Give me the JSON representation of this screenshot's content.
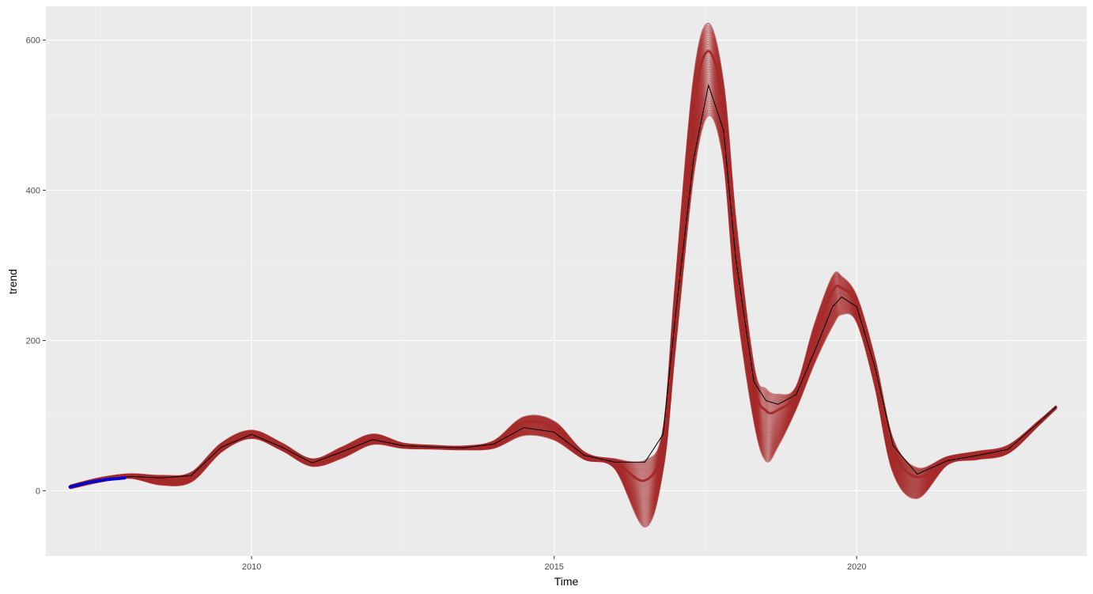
{
  "chart_data": {
    "type": "line",
    "title": "",
    "xlabel": "Time",
    "ylabel": "trend",
    "xlim": [
      2006.6,
      2023.8
    ],
    "ylim": [
      -87,
      645
    ],
    "x_ticks": [
      2010,
      2015,
      2020
    ],
    "x_tick_labels": [
      "2010",
      "2015",
      "2020"
    ],
    "y_ticks": [
      0,
      200,
      400,
      600
    ],
    "y_tick_labels": [
      "0",
      "200",
      "400",
      "600"
    ],
    "grid": true,
    "legend": "none",
    "colors": {
      "panel_background": "#ebebeb",
      "grid_major": "#ffffff",
      "grid_minor": "#f5f5f5",
      "trend_line": "#000000",
      "fitted_band": "#a52a2a",
      "initial_segment": "#0000cd"
    },
    "series": [
      {
        "role": "trend",
        "x": [
          2007.0,
          2007.5,
          2008.0,
          2008.5,
          2009.0,
          2009.5,
          2010.0,
          2010.5,
          2011.0,
          2011.5,
          2012.0,
          2012.5,
          2013.0,
          2013.5,
          2014.0,
          2014.5,
          2015.0,
          2015.5,
          2016.0,
          2016.5,
          2016.8,
          2017.0,
          2017.3,
          2017.55,
          2017.8,
          2018.0,
          2018.3,
          2018.5,
          2018.7,
          2019.0,
          2019.3,
          2019.6,
          2019.75,
          2020.0,
          2020.3,
          2020.6,
          2021.0,
          2021.5,
          2022.0,
          2022.5,
          2023.0,
          2023.3
        ],
        "y": [
          5,
          14,
          19,
          17,
          20,
          58,
          75,
          58,
          37,
          52,
          68,
          60,
          58,
          57,
          62,
          84,
          78,
          47,
          38,
          38,
          75,
          230,
          440,
          540,
          480,
          310,
          145,
          120,
          115,
          128,
          185,
          245,
          258,
          245,
          165,
          60,
          22,
          40,
          47,
          55,
          90,
          112
        ]
      },
      {
        "role": "fitted-upper",
        "x": [
          2007.0,
          2007.5,
          2008.0,
          2008.5,
          2009.0,
          2009.5,
          2010.0,
          2010.5,
          2011.0,
          2011.5,
          2012.0,
          2012.5,
          2013.0,
          2013.5,
          2014.0,
          2014.5,
          2015.0,
          2015.5,
          2016.0,
          2016.5,
          2016.8,
          2017.0,
          2017.3,
          2017.55,
          2017.8,
          2018.0,
          2018.3,
          2018.5,
          2018.7,
          2019.0,
          2019.3,
          2019.6,
          2019.75,
          2020.0,
          2020.3,
          2020.6,
          2021.0,
          2021.5,
          2022.0,
          2022.5,
          2023.0,
          2023.3
        ],
        "y": [
          7,
          17,
          22,
          20,
          24,
          63,
          80,
          63,
          42,
          58,
          75,
          63,
          60,
          59,
          66,
          98,
          92,
          51,
          42,
          40,
          80,
          270,
          545,
          622,
          540,
          360,
          165,
          135,
          128,
          138,
          220,
          285,
          285,
          258,
          175,
          68,
          30,
          45,
          52,
          60,
          92,
          113
        ]
      },
      {
        "role": "fitted-lower",
        "x": [
          2007.0,
          2007.5,
          2008.0,
          2008.5,
          2009.0,
          2009.5,
          2010.0,
          2010.5,
          2011.0,
          2011.5,
          2012.0,
          2012.5,
          2013.0,
          2013.5,
          2014.0,
          2014.5,
          2015.0,
          2015.5,
          2016.0,
          2016.5,
          2016.8,
          2017.0,
          2017.3,
          2017.55,
          2017.8,
          2018.0,
          2018.3,
          2018.5,
          2018.7,
          2019.0,
          2019.3,
          2019.6,
          2019.75,
          2020.0,
          2020.3,
          2020.6,
          2021.0,
          2021.5,
          2022.0,
          2022.5,
          2023.0,
          2023.3
        ],
        "y": [
          3,
          12,
          17,
          8,
          12,
          52,
          70,
          54,
          33,
          44,
          62,
          57,
          56,
          55,
          57,
          74,
          68,
          42,
          30,
          -48,
          30,
          190,
          420,
          500,
          440,
          260,
          95,
          40,
          60,
          110,
          170,
          220,
          235,
          225,
          140,
          25,
          -10,
          35,
          42,
          50,
          87,
          110
        ]
      },
      {
        "role": "initial-segment",
        "x": [
          2007.0,
          2007.3,
          2007.6,
          2007.9
        ],
        "y": [
          5,
          11,
          15,
          17
        ]
      }
    ]
  }
}
